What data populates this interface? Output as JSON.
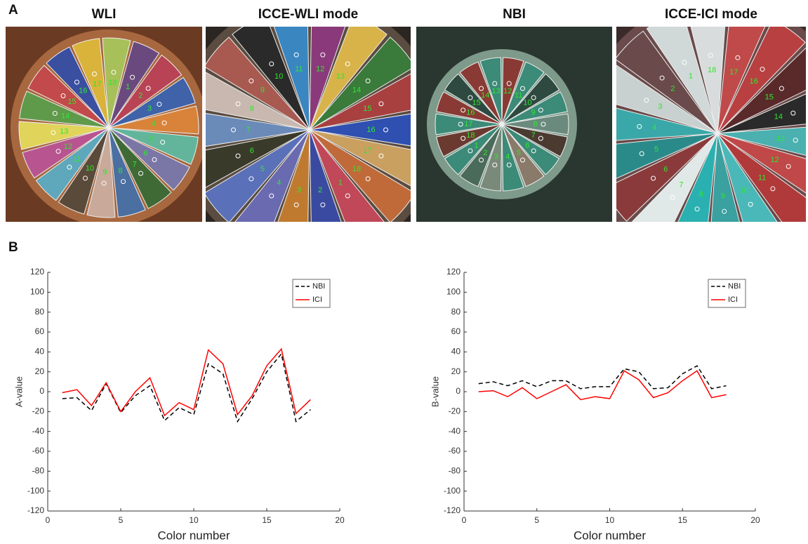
{
  "figure": {
    "panel_a_label": "A",
    "panel_b_label": "B",
    "images": [
      {
        "title": "WLI",
        "sector_labels": [
          "18",
          "1",
          "2",
          "3",
          "4",
          "5",
          "6",
          "7",
          "8",
          "9",
          "10",
          "11",
          "12",
          "13",
          "14",
          "15",
          "16",
          "17"
        ]
      },
      {
        "title": "ICCE-WLI mode",
        "sector_labels": [
          "11",
          "12",
          "13",
          "14",
          "15",
          "16",
          "17",
          "18",
          "1",
          "2",
          "3",
          "4",
          "5",
          "6",
          "7",
          "8",
          "9",
          "10"
        ]
      },
      {
        "title": "NBI",
        "sector_labels": [
          "13",
          "12",
          "11",
          "10",
          "9",
          "8",
          "7",
          "6",
          "5",
          "4",
          "3",
          "2",
          "1",
          "18",
          "17",
          "16",
          "15",
          "14"
        ]
      },
      {
        "title": "ICCE-ICI mode",
        "sector_labels": [
          "18",
          "17",
          "16",
          "15",
          "14",
          "13",
          "12",
          "11",
          "10",
          "9",
          "8",
          "7",
          "6",
          "5",
          "4",
          "3",
          "2",
          "1"
        ]
      }
    ]
  },
  "chart_data": [
    {
      "type": "line",
      "xlabel": "Color number",
      "ylabel": "A-value",
      "x": [
        1,
        2,
        3,
        4,
        5,
        6,
        7,
        8,
        9,
        10,
        11,
        12,
        13,
        14,
        15,
        16,
        17,
        18
      ],
      "series": [
        {
          "name": "NBI",
          "color": "#000000",
          "dash": true,
          "values": [
            -7,
            -6,
            -19,
            8,
            -21,
            -4,
            6,
            -29,
            -16,
            -23,
            28,
            18,
            -30,
            -7,
            20,
            38,
            -30,
            -18
          ]
        },
        {
          "name": "ICI",
          "color": "#ff0000",
          "dash": false,
          "values": [
            -1,
            2,
            -14,
            9,
            -20,
            0,
            14,
            -24,
            -11,
            -18,
            42,
            28,
            -23,
            -4,
            26,
            43,
            -22,
            -8
          ]
        }
      ],
      "xlim": [
        0,
        20
      ],
      "xticks": [
        0,
        5,
        10,
        15,
        20
      ],
      "ylim": [
        -120,
        120
      ],
      "yticks": [
        -120,
        -100,
        -80,
        -60,
        -40,
        -20,
        0,
        20,
        40,
        60,
        80,
        100,
        120
      ],
      "legend": "upper right"
    },
    {
      "type": "line",
      "xlabel": "Color number",
      "ylabel": "B-value",
      "x": [
        1,
        2,
        3,
        4,
        5,
        6,
        7,
        8,
        9,
        10,
        11,
        12,
        13,
        14,
        15,
        16,
        17,
        18
      ],
      "series": [
        {
          "name": "NBI",
          "color": "#000000",
          "dash": true,
          "values": [
            8,
            10,
            6,
            11,
            5,
            11,
            11,
            3,
            5,
            5,
            23,
            20,
            3,
            4,
            18,
            26,
            3,
            6
          ]
        },
        {
          "name": "ICI",
          "color": "#ff0000",
          "dash": false,
          "values": [
            0,
            1,
            -5,
            4,
            -7,
            0,
            7,
            -8,
            -5,
            -7,
            21,
            12,
            -6,
            -1,
            11,
            21,
            -6,
            -3
          ]
        }
      ],
      "xlim": [
        0,
        20
      ],
      "xticks": [
        0,
        5,
        10,
        15,
        20
      ],
      "ylim": [
        -120,
        120
      ],
      "yticks": [
        -120,
        -100,
        -80,
        -60,
        -40,
        -20,
        0,
        20,
        40,
        60,
        80,
        100,
        120
      ],
      "legend": "upper right"
    }
  ]
}
